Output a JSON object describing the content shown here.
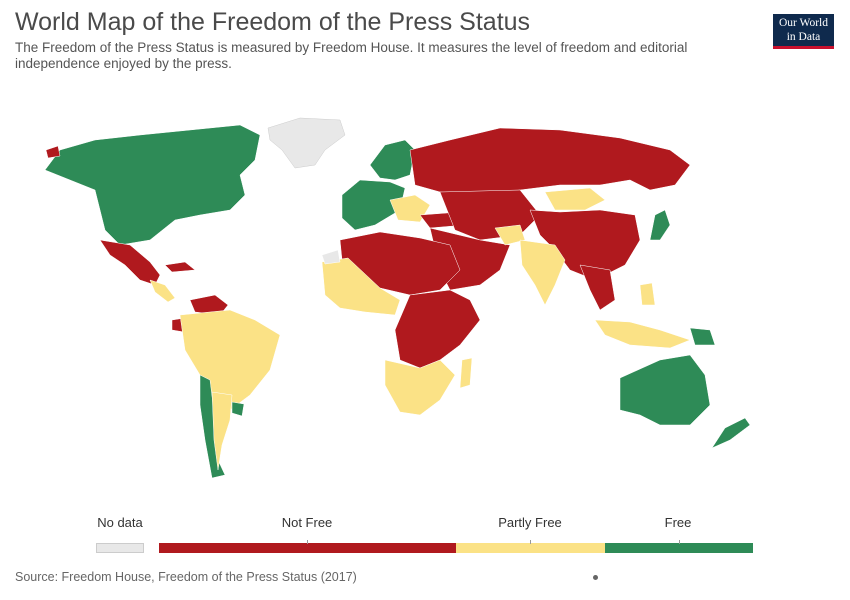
{
  "title": "World Map of the Freedom of the Press Status",
  "subtitle": "The Freedom of the Press Status is measured by Freedom House. It measures the level of freedom and editorial independence enjoyed by the press.",
  "logo": {
    "line1": "Our World",
    "line2": "in Data"
  },
  "legend": {
    "no_data": "No data",
    "not_free": "Not Free",
    "partly_free": "Partly Free",
    "free": "Free"
  },
  "colors": {
    "not_free": "#b0191e",
    "partly_free": "#fbe286",
    "free": "#2e8b57",
    "no_data": "#e8e8e8"
  },
  "source": "Source: Freedom House, Freedom of the Press Status (2017)"
}
